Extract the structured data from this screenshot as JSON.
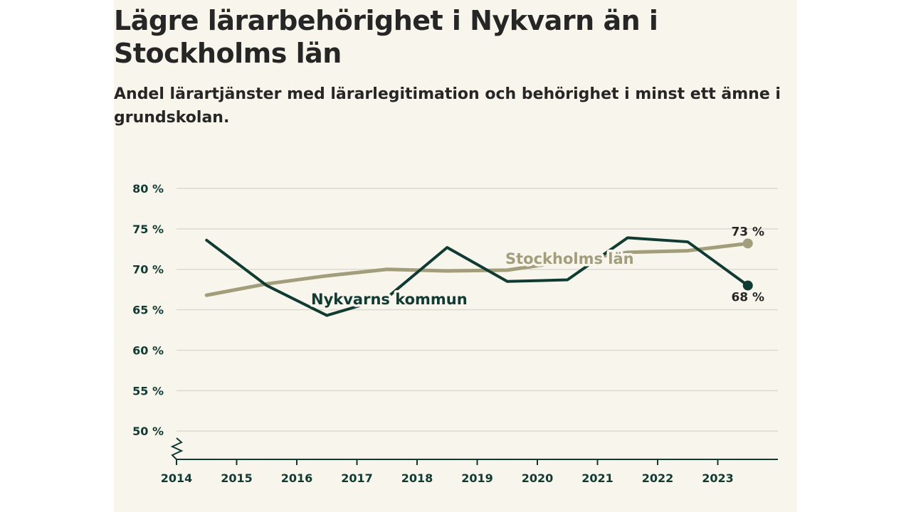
{
  "header": {
    "title": "Lägre lärarbehörighet i Nykvarn än i Stockholms län",
    "subtitle": "Andel lärartjänster med lärarlegitimation och behörighet i minst ett ämne i grundskolan."
  },
  "chart_data": {
    "type": "line",
    "title": "Lägre lärarbehörighet i Nykvarn än i Stockholms län",
    "subtitle": "Andel lärartjänster med lärarlegitimation och behörighet i minst ett ämne i grundskolan.",
    "xlabel": "",
    "ylabel": "",
    "x_ticks": [
      "2014",
      "2015",
      "2016",
      "2017",
      "2018",
      "2019",
      "2020",
      "2021",
      "2022",
      "2023"
    ],
    "x_tick_values": [
      2014,
      2015,
      2016,
      2017,
      2018,
      2019,
      2020,
      2021,
      2022,
      2023
    ],
    "y_ticks": [
      "50 %",
      "55 %",
      "60 %",
      "65 %",
      "70 %",
      "75 %",
      "80 %"
    ],
    "y_tick_values": [
      50,
      55,
      60,
      65,
      70,
      75,
      80
    ],
    "xlim": [
      2014,
      2024
    ],
    "ylim": [
      46.5,
      80
    ],
    "grid": true,
    "axis_break": true,
    "series": [
      {
        "name": "Nykvarns kommun",
        "label": "Nykvarns kommun",
        "color": "#0f3b33",
        "x": [
          2014.5,
          2015.5,
          2016.5,
          2017.5,
          2018.5,
          2019.5,
          2020.5,
          2021.5,
          2022.5,
          2023.5
        ],
        "values": [
          73.6,
          68.0,
          64.3,
          66.5,
          72.7,
          68.5,
          68.7,
          73.9,
          73.4,
          68.0
        ],
        "end_label": "68 %"
      },
      {
        "name": "Stockholms län",
        "label": "Stockholms län",
        "color": "#a29d7b",
        "x": [
          2014.5,
          2015.5,
          2016.5,
          2017.5,
          2018.5,
          2019.5,
          2020.5,
          2021.5,
          2022.5,
          2023.5
        ],
        "values": [
          66.8,
          68.2,
          69.2,
          70.0,
          69.8,
          69.9,
          71.0,
          72.1,
          72.3,
          73.2
        ],
        "end_label": "73 %"
      }
    ]
  }
}
